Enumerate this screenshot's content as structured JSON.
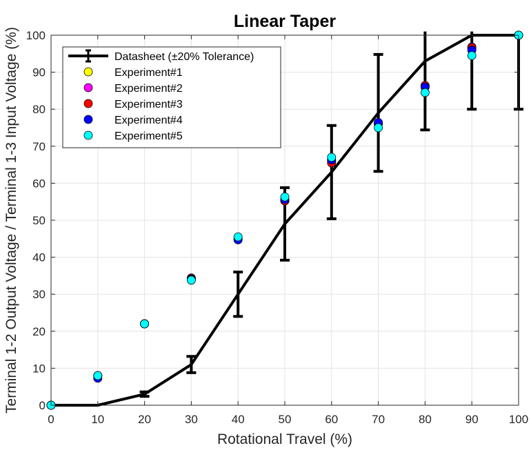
{
  "chart_data": {
    "type": "line",
    "title": "Linear Taper",
    "xlabel": "Rotational Travel (%)",
    "ylabel": "Terminal 1-2 Output Voltage / Terminal 1-3 Input Voltage (%)",
    "xlim": [
      0,
      100
    ],
    "ylim": [
      0,
      100
    ],
    "xticks": [
      0,
      10,
      20,
      30,
      40,
      50,
      60,
      70,
      80,
      90,
      100
    ],
    "yticks": [
      0,
      10,
      20,
      30,
      40,
      50,
      60,
      70,
      80,
      90,
      100
    ],
    "grid": true,
    "legend_position": "top-left",
    "series": [
      {
        "name": "Datasheet (±20% Tolerance)",
        "kind": "line-errorbar",
        "color": "#000000",
        "x": [
          0,
          10,
          20,
          30,
          40,
          50,
          60,
          70,
          80,
          90,
          100
        ],
        "y": [
          0,
          0,
          3,
          11,
          30,
          49,
          63,
          79,
          93,
          100,
          100
        ],
        "err_low": [
          0,
          0,
          0.6,
          2.2,
          6,
          9.8,
          12.6,
          15.8,
          18.6,
          20,
          20
        ],
        "err_high": [
          0,
          0,
          0.6,
          2.2,
          6,
          9.8,
          12.6,
          15.8,
          18.6,
          20,
          20
        ]
      },
      {
        "name": "Experiment#1",
        "kind": "marker",
        "color": "#ffff00",
        "x": [
          0,
          10,
          20,
          30,
          40,
          50,
          60,
          70,
          80,
          90,
          100
        ],
        "y": [
          0,
          8,
          22,
          34.2,
          45,
          55.5,
          66,
          76,
          86,
          96.5,
          100
        ]
      },
      {
        "name": "Experiment#2",
        "kind": "marker",
        "color": "#ff00ff",
        "x": [
          0,
          10,
          20,
          30,
          40,
          50,
          60,
          70,
          80,
          90,
          100
        ],
        "y": [
          0,
          8,
          22,
          34.4,
          45,
          55.3,
          65.8,
          76.2,
          86.3,
          96.8,
          100
        ]
      },
      {
        "name": "Experiment#3",
        "kind": "marker",
        "color": "#ff0000",
        "x": [
          0,
          10,
          20,
          30,
          40,
          50,
          60,
          70,
          80,
          90,
          100
        ],
        "y": [
          0,
          8,
          22,
          34.2,
          44.8,
          55.2,
          65.5,
          76.3,
          86.4,
          96.6,
          100
        ]
      },
      {
        "name": "Experiment#4",
        "kind": "marker",
        "color": "#0000ff",
        "x": [
          0,
          10,
          20,
          30,
          40,
          50,
          60,
          70,
          80,
          90,
          100
        ],
        "y": [
          0,
          7.3,
          22,
          34,
          44.7,
          55.6,
          66.3,
          76.4,
          86,
          96,
          100
        ]
      },
      {
        "name": "Experiment#5",
        "kind": "marker",
        "color": "#00ffff",
        "x": [
          0,
          10,
          20,
          30,
          40,
          50,
          60,
          70,
          80,
          90,
          100
        ],
        "y": [
          0,
          8,
          22,
          33.8,
          45.5,
          56.3,
          67,
          75,
          84.5,
          94.5,
          100
        ]
      }
    ]
  }
}
